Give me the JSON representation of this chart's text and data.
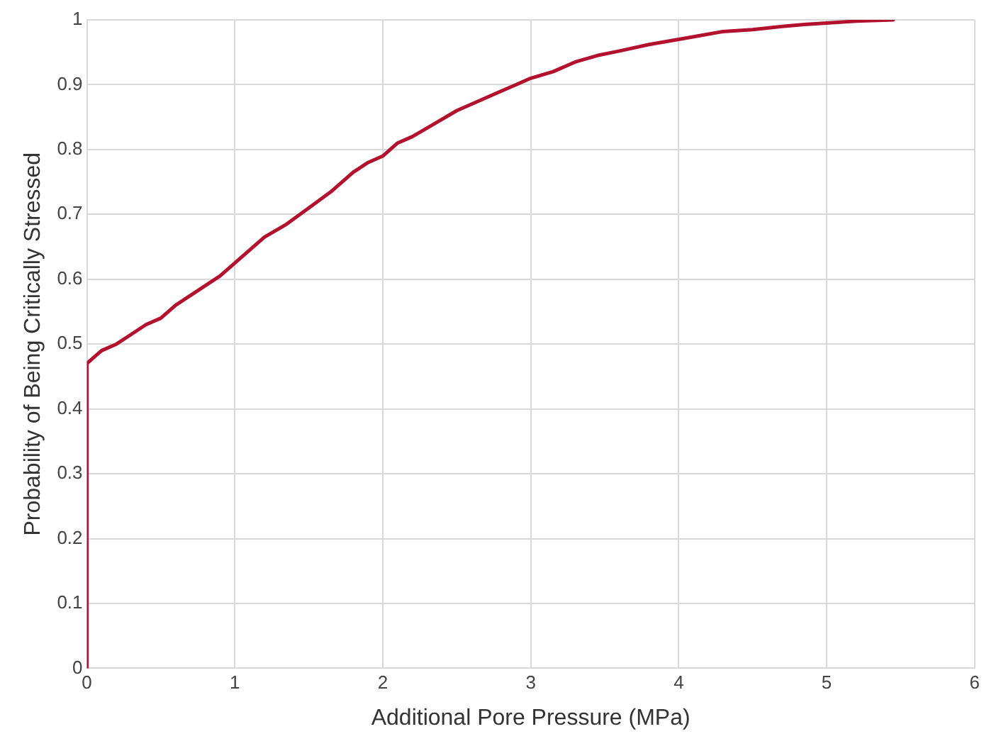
{
  "chart_data": {
    "type": "line",
    "xlabel": "Additional Pore Pressure (MPa)",
    "ylabel": "Probability of Being Critically Stressed",
    "series": [
      {
        "color": "#b3122e",
        "x": [
          0,
          0,
          0.05,
          0.1,
          0.2,
          0.3,
          0.4,
          0.5,
          0.6,
          0.7,
          0.8,
          0.9,
          1,
          1.1,
          1.2,
          1.35,
          1.5,
          1.65,
          1.8,
          1.9,
          2,
          2.1,
          2.2,
          2.35,
          2.5,
          2.65,
          2.8,
          2.9,
          3,
          3.15,
          3.3,
          3.45,
          3.6,
          3.8,
          4,
          4.15,
          4.3,
          4.5,
          4.7,
          4.85,
          5,
          5.2,
          5.45
        ],
        "values": [
          0,
          0.47,
          0.48,
          0.49,
          0.5,
          0.515,
          0.53,
          0.54,
          0.56,
          0.575,
          0.59,
          0.605,
          0.625,
          0.645,
          0.665,
          0.685,
          0.71,
          0.735,
          0.765,
          0.78,
          0.79,
          0.81,
          0.82,
          0.84,
          0.86,
          0.875,
          0.89,
          0.9,
          0.91,
          0.92,
          0.935,
          0.945,
          0.952,
          0.962,
          0.97,
          0.976,
          0.982,
          0.985,
          0.99,
          0.993,
          0.995,
          0.998,
          1
        ]
      }
    ],
    "xlim": [
      0,
      6
    ],
    "xticks": [
      0,
      1,
      2,
      3,
      4,
      5,
      6
    ],
    "ylim": [
      0,
      1
    ],
    "yticks": [
      0,
      0.1,
      0.2,
      0.3,
      0.4,
      0.5,
      0.6,
      0.7,
      0.8,
      0.9,
      1
    ],
    "grid": true,
    "marker": "none",
    "line_style": "solid"
  }
}
